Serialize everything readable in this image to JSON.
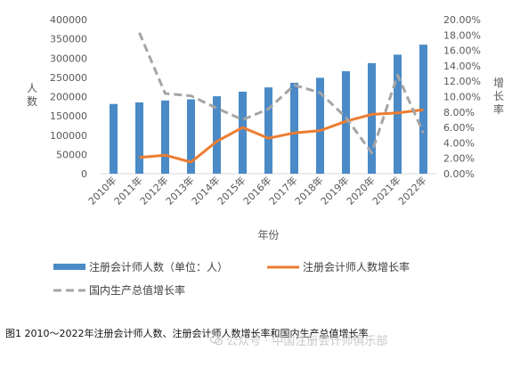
{
  "chart_data": {
    "type": "bar+line",
    "categories": [
      "2010年",
      "2011年",
      "2012年",
      "2013年",
      "2014年",
      "2015年",
      "2016年",
      "2017年",
      "2018年",
      "2019年",
      "2020年",
      "2021年",
      "2022年"
    ],
    "series": [
      {
        "name": "注册会计师人数（单位：人）",
        "type": "bar",
        "axis": "left",
        "color": "#4a8ac7",
        "values": [
          181000,
          185000,
          190000,
          193000,
          201000,
          213000,
          224000,
          236000,
          249000,
          266000,
          287000,
          309000,
          335000
        ]
      },
      {
        "name": "注册会计师人数增长率",
        "type": "line",
        "axis": "right",
        "color": "#ed7d31",
        "dash": "solid",
        "values": [
          null,
          0.021,
          0.024,
          0.015,
          0.042,
          0.06,
          0.046,
          0.053,
          0.056,
          0.068,
          0.077,
          0.079,
          0.083
        ]
      },
      {
        "name": "国内生产总值增长率",
        "type": "line",
        "axis": "right",
        "color": "#a5a5a5",
        "dash": "dashed",
        "values": [
          null,
          0.183,
          0.104,
          0.101,
          0.085,
          0.07,
          0.084,
          0.115,
          0.105,
          0.073,
          0.027,
          0.128,
          0.053
        ]
      }
    ],
    "y_left": {
      "label": "人数",
      "min": 0,
      "max": 400000,
      "step": 50000
    },
    "y_right": {
      "label": "增长率",
      "min": 0,
      "max": 0.2,
      "step": 0.02
    },
    "xlabel": "年份",
    "legend_position": "bottom",
    "grid": false
  },
  "caption": "图1 2010～2022年注册会计师人数、注册会计师人数增长率和国内生产总值增长率",
  "watermark": "公众号 · 中国注册会计师俱乐部"
}
